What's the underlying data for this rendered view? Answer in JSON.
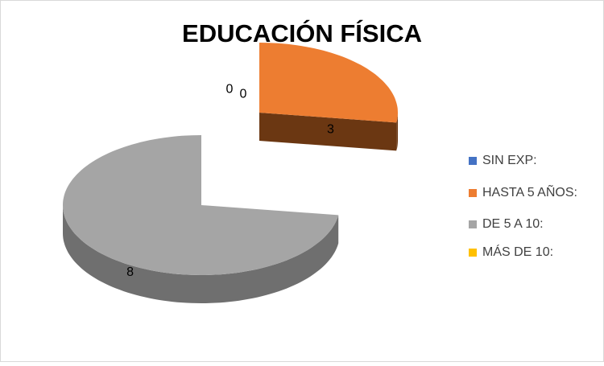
{
  "chart_data": {
    "type": "pie",
    "title": "EDUCACIÓN FÍSICA",
    "categories": [
      "SIN EXP:",
      "HASTA 5 AÑOS:",
      "DE 5 A 10:",
      "MÁS DE 10:"
    ],
    "values": [
      0,
      3,
      8,
      0
    ],
    "colors": [
      "#4472c4",
      "#ed7d31",
      "#a5a5a5",
      "#ffc000"
    ],
    "side_colors": [
      "#2f528f",
      "#6b3712",
      "#6f6f6f",
      "#b38600"
    ],
    "legend": "right"
  }
}
